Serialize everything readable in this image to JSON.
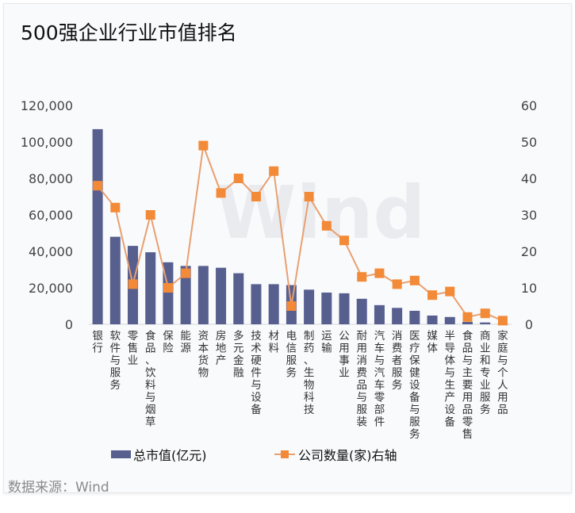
{
  "title": "500强企业行业市值排名",
  "source": "数据来源：Wind",
  "watermark": "Wind",
  "colors": {
    "bar": "#575f8f",
    "line": "#f28a38",
    "line_stroke": "#e8a070"
  },
  "chart_data": {
    "type": "bar+line",
    "title": "500强企业行业市值排名",
    "categories": [
      "银行",
      "软件与服务",
      "零售业",
      "食品、饮料与烟草",
      "保险",
      "能源",
      "资本货物",
      "房地产",
      "多元金融",
      "技术硬件与设备",
      "材料",
      "电信服务",
      "制药、生物科技",
      "运输",
      "公用事业",
      "耐用消费品与服装",
      "汽车与汽车零部件",
      "消费者服务",
      "医疗保健设备与服务",
      "媒体",
      "半导体与生产设备",
      "食品与主要用品零售",
      "商业和专业服务",
      "家庭与个人用品"
    ],
    "series": [
      {
        "name": "总市值(亿元)",
        "type": "bar",
        "axis": "left",
        "values": [
          107000,
          48000,
          43000,
          39500,
          34000,
          32000,
          32000,
          31000,
          28000,
          22000,
          22000,
          21500,
          19000,
          17400,
          17000,
          14000,
          10500,
          9000,
          7400,
          4800,
          4000,
          1300,
          1000,
          300
        ]
      },
      {
        "name": "公司数量(家)右轴",
        "type": "line",
        "axis": "right",
        "values": [
          38,
          32,
          11,
          30,
          10,
          14,
          49,
          36,
          40,
          35,
          42,
          5,
          35,
          27,
          23,
          13,
          14,
          11,
          12,
          8,
          9,
          2,
          3,
          1
        ]
      }
    ],
    "left_axis": {
      "range": [
        0,
        120000
      ],
      "ticks": [
        "0",
        "20,000",
        "40,000",
        "60,000",
        "80,000",
        "100,000",
        "120,000"
      ]
    },
    "right_axis": {
      "range": [
        0,
        60
      ],
      "ticks": [
        "0",
        "10",
        "20",
        "30",
        "40",
        "50",
        "60"
      ]
    },
    "legend": {
      "placement": "bottom",
      "entries": [
        "总市值(亿元)",
        "公司数量(家)右轴"
      ]
    },
    "grid": false
  }
}
